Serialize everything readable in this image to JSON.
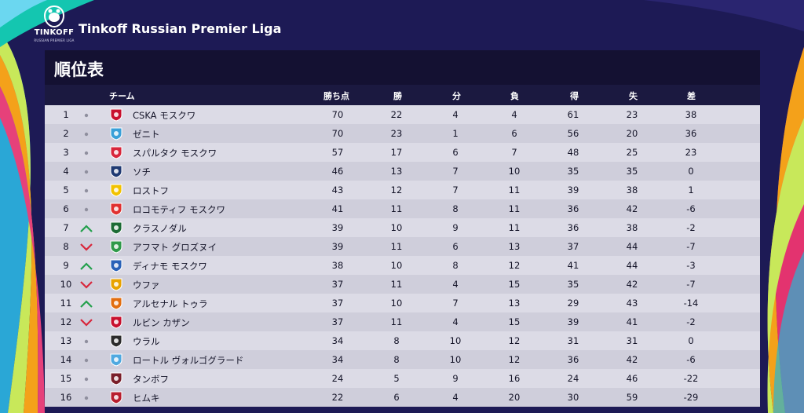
{
  "league": {
    "logo_text": "TINKOFF",
    "logo_subtext": "RUSSIAN PREMIER LIGA",
    "title": "Tinkoff Russian Premier Liga"
  },
  "panel": {
    "title": "順位表"
  },
  "columns": {
    "team": "チーム",
    "points": "勝ち点",
    "won": "勝",
    "drawn": "分",
    "lost": "負",
    "goals_for": "得",
    "goals_against": "失",
    "goal_diff": "差"
  },
  "colors": {
    "up": "#23a04c",
    "down": "#d8263b",
    "same": "#8f8f9e"
  },
  "rows": [
    {
      "pos": "1",
      "trend": "same",
      "crest": "#c8102e",
      "team": "CSKA モスクワ",
      "pts": "70",
      "w": "22",
      "d": "4",
      "l": "4",
      "gf": "61",
      "ga": "23",
      "gd": "38"
    },
    {
      "pos": "2",
      "trend": "same",
      "crest": "#3aa0d8",
      "team": "ゼニト",
      "pts": "70",
      "w": "23",
      "d": "1",
      "l": "6",
      "gf": "56",
      "ga": "20",
      "gd": "36"
    },
    {
      "pos": "3",
      "trend": "same",
      "crest": "#d8263b",
      "team": "スパルタク モスクワ",
      "pts": "57",
      "w": "17",
      "d": "6",
      "l": "7",
      "gf": "48",
      "ga": "25",
      "gd": "23"
    },
    {
      "pos": "4",
      "trend": "same",
      "crest": "#1f3a73",
      "team": "ソチ",
      "pts": "46",
      "w": "13",
      "d": "7",
      "l": "10",
      "gf": "35",
      "ga": "35",
      "gd": "0"
    },
    {
      "pos": "5",
      "trend": "same",
      "crest": "#f2c200",
      "team": "ロストフ",
      "pts": "43",
      "w": "12",
      "d": "7",
      "l": "11",
      "gf": "39",
      "ga": "38",
      "gd": "1"
    },
    {
      "pos": "6",
      "trend": "same",
      "crest": "#e03030",
      "team": "ロコモティフ モスクワ",
      "pts": "41",
      "w": "11",
      "d": "8",
      "l": "11",
      "gf": "36",
      "ga": "42",
      "gd": "-6"
    },
    {
      "pos": "7",
      "trend": "up",
      "crest": "#1c6b35",
      "team": "クラスノダル",
      "pts": "39",
      "w": "10",
      "d": "9",
      "l": "11",
      "gf": "36",
      "ga": "38",
      "gd": "-2"
    },
    {
      "pos": "8",
      "trend": "down",
      "crest": "#2f9a4a",
      "team": "アフマト グロズヌイ",
      "pts": "39",
      "w": "11",
      "d": "6",
      "l": "13",
      "gf": "37",
      "ga": "44",
      "gd": "-7"
    },
    {
      "pos": "9",
      "trend": "up",
      "crest": "#2a62b8",
      "team": "ディナモ モスクワ",
      "pts": "38",
      "w": "10",
      "d": "8",
      "l": "12",
      "gf": "41",
      "ga": "44",
      "gd": "-3"
    },
    {
      "pos": "10",
      "trend": "down",
      "crest": "#e8a300",
      "team": "ウファ",
      "pts": "37",
      "w": "11",
      "d": "4",
      "l": "15",
      "gf": "35",
      "ga": "42",
      "gd": "-7"
    },
    {
      "pos": "11",
      "trend": "up",
      "crest": "#e26e10",
      "team": "アルセナル トゥラ",
      "pts": "37",
      "w": "10",
      "d": "7",
      "l": "13",
      "gf": "29",
      "ga": "43",
      "gd": "-14"
    },
    {
      "pos": "12",
      "trend": "down",
      "crest": "#c8102e",
      "team": "ルビン カザン",
      "pts": "37",
      "w": "11",
      "d": "4",
      "l": "15",
      "gf": "39",
      "ga": "41",
      "gd": "-2"
    },
    {
      "pos": "13",
      "trend": "same",
      "crest": "#2b2b2b",
      "team": "ウラル",
      "pts": "34",
      "w": "8",
      "d": "10",
      "l": "12",
      "gf": "31",
      "ga": "31",
      "gd": "0"
    },
    {
      "pos": "14",
      "trend": "same",
      "crest": "#4fa9e0",
      "team": "ロートル ヴォルゴグラード",
      "pts": "34",
      "w": "8",
      "d": "10",
      "l": "12",
      "gf": "36",
      "ga": "42",
      "gd": "-6"
    },
    {
      "pos": "15",
      "trend": "same",
      "crest": "#7a1f2a",
      "team": "タンボフ",
      "pts": "24",
      "w": "5",
      "d": "9",
      "l": "16",
      "gf": "24",
      "ga": "46",
      "gd": "-22"
    },
    {
      "pos": "16",
      "trend": "same",
      "crest": "#b81f2e",
      "team": "ヒムキ",
      "pts": "22",
      "w": "6",
      "d": "4",
      "l": "20",
      "gf": "30",
      "ga": "59",
      "gd": "-29"
    }
  ]
}
